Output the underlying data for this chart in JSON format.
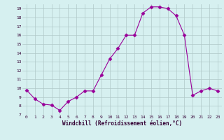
{
  "hours": [
    0,
    1,
    2,
    3,
    4,
    5,
    6,
    7,
    8,
    9,
    10,
    11,
    12,
    13,
    14,
    15,
    16,
    17,
    18,
    19,
    20,
    21,
    22,
    23
  ],
  "values": [
    9.8,
    8.8,
    8.2,
    8.1,
    7.5,
    8.5,
    9.0,
    9.7,
    9.7,
    11.5,
    13.3,
    14.5,
    16.0,
    16.0,
    18.5,
    19.2,
    19.2,
    19.0,
    18.2,
    16.0,
    9.2,
    9.7,
    10.0,
    9.7
  ],
  "xlabel": "Windchill (Refroidissement éolien,°C)",
  "ylim": [
    7,
    19.5
  ],
  "xlim": [
    -0.5,
    23.5
  ],
  "line_color": "#990099",
  "marker": "D",
  "marker_size": 2.5,
  "bg_color": "#d6f0f0",
  "grid_color": "#b0c8c8",
  "yticks": [
    7,
    8,
    9,
    10,
    11,
    12,
    13,
    14,
    15,
    16,
    17,
    18,
    19
  ],
  "xticks": [
    0,
    1,
    2,
    3,
    4,
    5,
    6,
    7,
    8,
    9,
    10,
    11,
    12,
    13,
    14,
    15,
    16,
    17,
    18,
    19,
    20,
    21,
    22,
    23
  ]
}
